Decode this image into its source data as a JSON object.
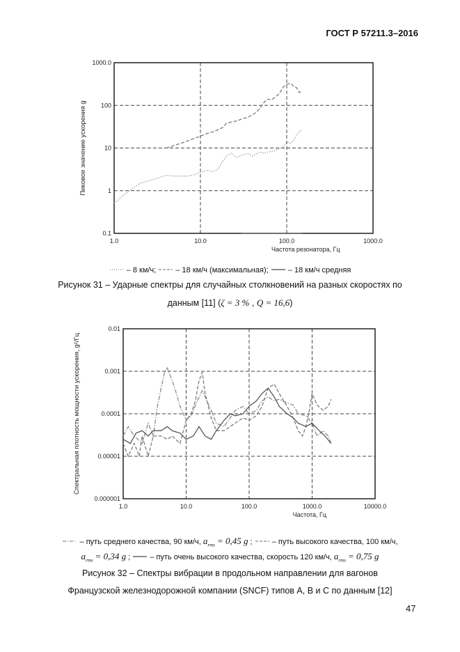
{
  "header": {
    "doc_id": "ГОСТ Р 57211.3–2016"
  },
  "figure31": {
    "legend": [
      {
        "style": "dotted",
        "label": "– 8 км/ч;"
      },
      {
        "style": "dashed",
        "label": "– 18 км/ч (максимальная);"
      },
      {
        "style": "solid",
        "label": "– 18 км/ч средняя"
      }
    ],
    "caption_line1": "Рисунок 31 – Ударные спектры для случайных столкновений на разных скоростях по",
    "caption_line2_prefix": "данным [11] (",
    "zeta": "ζ = 3 %",
    "q": "Q = 16,6",
    "caption_line2_suffix": ")"
  },
  "figure32": {
    "legend_line1_a": "– путь среднего качества, 90 км/ч,",
    "a_rms_1": "= 0,45 g",
    "legend_line1_b": "– путь высокого качества, 100 км/ч,",
    "a_rms_2": "= 0,34 g",
    "legend_line2_b": "– путь очень высокого качества, скорость 120 км/ч,",
    "a_rms_3": "= 0,75 g",
    "a_symbol": "a",
    "a_sub": "rms",
    "caption_line1": "Рисунок 32 – Спектры вибрации в продольном направлении для вагонов",
    "caption_line2": "Французской железнодорожной компании (SNCF) типов A, B и C по данным [12]"
  },
  "page_number": "47",
  "chart_data": [
    {
      "type": "line",
      "x_scale": "log",
      "y_scale": "log",
      "xlim": [
        1,
        1000
      ],
      "ylim": [
        0.1,
        1000
      ],
      "xlabel": "Частота резонатора, Гц",
      "ylabel": "Пиковое значение ускорения  g",
      "x_ticks": [
        "1.0",
        "10.0",
        "100.0",
        "1000.0"
      ],
      "y_ticks": [
        "0.1",
        "1",
        "10",
        "100",
        "1000.0"
      ],
      "grid": true,
      "series": [
        {
          "name": "8 км/ч",
          "style": "dotted",
          "x": [
            1,
            1.3,
            1.6,
            2,
            2.5,
            3,
            3.5,
            4,
            5,
            6,
            7,
            8,
            10,
            12,
            14,
            16,
            18,
            20,
            23,
            26,
            30,
            35,
            40,
            45,
            50,
            55,
            60,
            70,
            80,
            90,
            100,
            110,
            120,
            130,
            140,
            150
          ],
          "y": [
            0.5,
            0.8,
            1.1,
            1.5,
            1.7,
            1.9,
            2.1,
            2.3,
            2.2,
            2.2,
            2.2,
            2.3,
            2.7,
            3.0,
            2.8,
            3.2,
            4.8,
            6.5,
            7.5,
            6.0,
            6.8,
            7.5,
            6.5,
            7.5,
            8.0,
            7.5,
            8.0,
            8.5,
            9.5,
            10.5,
            13.5,
            13.0,
            15.0,
            20.0,
            24.0,
            27.0
          ]
        },
        {
          "name": "18 км/ч (максимальная)",
          "style": "dashed",
          "x": [
            4,
            5,
            6,
            7,
            8,
            10,
            12,
            14,
            16,
            18,
            20,
            22,
            25,
            28,
            30,
            35,
            40,
            45,
            50,
            55,
            60,
            65,
            70,
            75,
            80,
            85,
            90,
            95,
            100,
            110,
            120,
            130,
            140,
            150
          ],
          "y": [
            10,
            11.5,
            13,
            14.5,
            16,
            19,
            22,
            24,
            27,
            30,
            38,
            40,
            42,
            45,
            48,
            52,
            60,
            70,
            90,
            120,
            140,
            135,
            145,
            160,
            180,
            210,
            260,
            290,
            310,
            330,
            280,
            260,
            200,
            210
          ]
        },
        {
          "name": "18 км/ч средняя",
          "style": "solid",
          "x": [
            30,
            40,
            50,
            60,
            80,
            100,
            130,
            150
          ],
          "y": [
            0.1,
            0.1,
            0.1,
            0.1,
            0.1,
            0.1,
            0.1,
            0.1
          ]
        }
      ]
    },
    {
      "type": "line",
      "x_scale": "log",
      "y_scale": "log",
      "xlim": [
        1,
        10000
      ],
      "ylim": [
        1e-06,
        0.01
      ],
      "xlabel": "Частота, Гц",
      "ylabel": "Спектральная плотность мощности ускорения,  g²/Гц",
      "x_ticks": [
        "1.0",
        "10.0",
        "100.0",
        "1000.0",
        "10000.0"
      ],
      "y_ticks": [
        "0.000001",
        "0.00001",
        "0.0001",
        "0.001",
        "0.01"
      ],
      "grid": true,
      "series": [
        {
          "name": "путь среднего качества, 90 км/ч",
          "style": "dashdot",
          "x": [
            1,
            1.2,
            1.5,
            2,
            2.5,
            3,
            3.5,
            4,
            4.5,
            5,
            6,
            7,
            8,
            10,
            12,
            15,
            18,
            20,
            25,
            30,
            40,
            50,
            60,
            80,
            100,
            130,
            160,
            200,
            250,
            300,
            400,
            500,
            600,
            800,
            1000,
            1200,
            1500,
            1800,
            2000
          ],
          "y": [
            3e-05,
            5e-05,
            3e-05,
            2e-05,
            6e-05,
            3e-05,
            0.00015,
            0.0004,
            0.0009,
            0.0012,
            0.0006,
            0.0003,
            0.00015,
            7e-05,
            9e-05,
            0.0002,
            0.00035,
            0.00025,
            0.00012,
            6e-05,
            5e-05,
            8e-05,
            0.00012,
            0.00015,
            0.0001,
            0.00012,
            0.0002,
            0.00025,
            0.0002,
            0.00022,
            0.00018,
            0.00016,
            0.0001,
            9e-05,
            6e-05,
            3e-05,
            4e-05,
            3e-05,
            2e-05
          ]
        },
        {
          "name": "путь высокого качества, 100 км/ч",
          "style": "dashed",
          "x": [
            1,
            1.2,
            1.5,
            1.8,
            2,
            2.5,
            3,
            4,
            5,
            6,
            8,
            10,
            12,
            14,
            16,
            18,
            20,
            25,
            30,
            40,
            50,
            60,
            80,
            100,
            130,
            160,
            200,
            250,
            300,
            400,
            500,
            600,
            700,
            800,
            900,
            1000,
            1200,
            1500,
            1800,
            2000
          ],
          "y": [
            2e-05,
            1e-05,
            2e-05,
            1e-05,
            3e-05,
            1e-05,
            3e-05,
            3e-05,
            2.5e-05,
            3e-05,
            2e-05,
            7e-05,
            0.0001,
            0.0002,
            0.0006,
            0.00095,
            0.0003,
            8e-05,
            4e-05,
            4e-05,
            5e-05,
            6e-05,
            8e-05,
            7e-05,
            9e-05,
            0.00015,
            0.0004,
            0.0005,
            0.0003,
            0.00015,
            8e-05,
            4e-05,
            3e-05,
            5e-05,
            0.00012,
            0.0003,
            0.00016,
            0.00012,
            0.00015,
            0.00022
          ]
        },
        {
          "name": "путь очень высокого качества, скорость 120 км/ч",
          "style": "solid",
          "x": [
            1,
            1.3,
            1.6,
            2,
            2.5,
            3,
            4,
            5,
            6,
            8,
            10,
            13,
            16,
            20,
            25,
            30,
            40,
            50,
            60,
            80,
            100,
            130,
            160,
            200,
            250,
            300,
            400,
            500,
            600,
            800,
            1000,
            1300,
            1600,
            2000
          ],
          "y": [
            2.5e-05,
            2e-05,
            3.5e-05,
            4e-05,
            3e-05,
            4e-05,
            4e-05,
            5e-05,
            4e-05,
            3.5e-05,
            2.5e-05,
            3e-05,
            5e-05,
            3e-05,
            2.5e-05,
            4e-05,
            7e-05,
            0.0001,
            9e-05,
            0.0001,
            0.00015,
            0.0002,
            0.0003,
            0.0004,
            0.00025,
            0.00015,
            0.0001,
            8e-05,
            6e-05,
            5e-05,
            6e-05,
            4e-05,
            3e-05,
            2e-05
          ]
        }
      ]
    }
  ]
}
